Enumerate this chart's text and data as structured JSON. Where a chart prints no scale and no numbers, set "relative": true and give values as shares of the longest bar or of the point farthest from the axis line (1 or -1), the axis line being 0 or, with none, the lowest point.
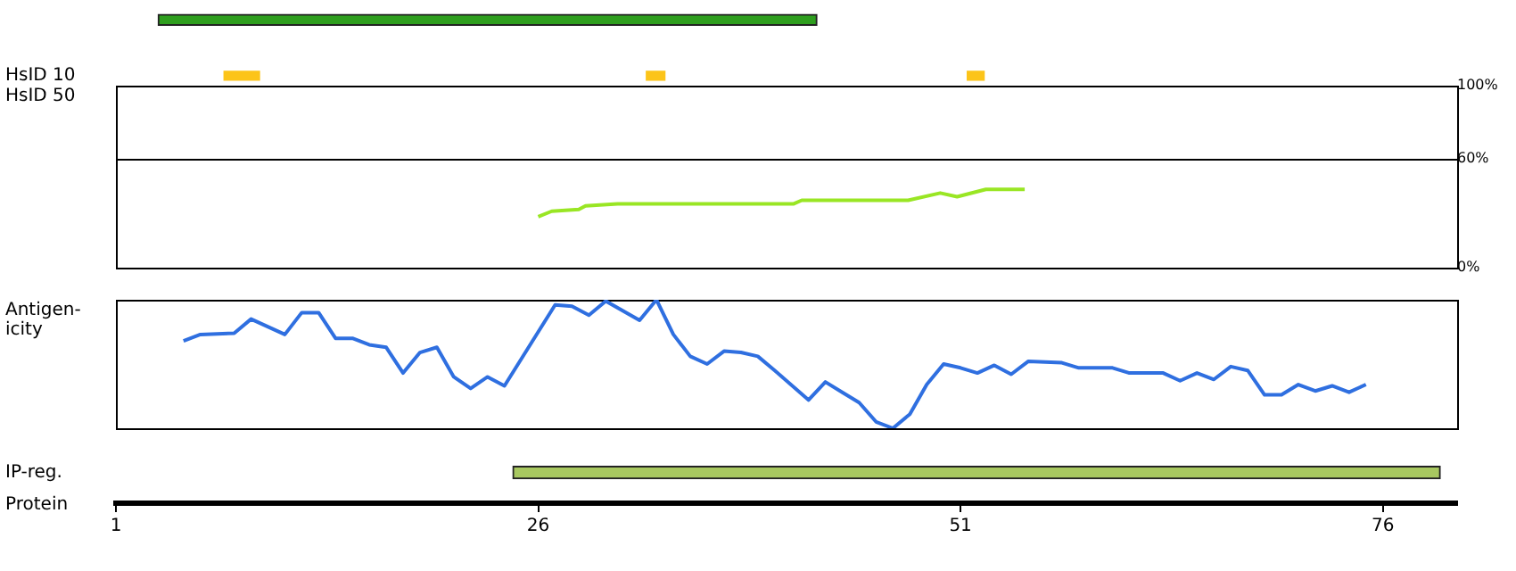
{
  "chart_data": [
    {
      "type": "bar",
      "orientation": "horizontal",
      "categories": [
        null,
        "HsID 10",
        "IP-reg."
      ],
      "series": [
        {
          "color": "#2e9e1e",
          "base": [
            3.5,
            null,
            null
          ],
          "values": [
            39,
            null,
            null
          ]
        },
        {
          "color": "#fcc419",
          "base": [
            null,
            7.4,
            null
          ],
          "values": [
            null,
            2.1,
            null
          ]
        },
        {
          "color": "#fcc419",
          "base": [
            null,
            32.4,
            null
          ],
          "values": [
            null,
            1.1,
            null
          ]
        },
        {
          "color": "#fcc419",
          "base": [
            null,
            51.4,
            null
          ],
          "values": [
            null,
            1,
            null
          ]
        },
        {
          "color": "#a8c860",
          "base": [
            null,
            null,
            24.5
          ],
          "values": [
            null,
            null,
            54.9
          ]
        }
      ],
      "xlabel": "Protein",
      "xlim": [
        1,
        80.4
      ],
      "xticks": [
        1,
        26,
        51,
        76
      ]
    },
    {
      "type": "line",
      "ylabel": "HsID 50",
      "x": [
        26,
        26.8,
        28.4,
        28.8,
        30.7,
        41.1,
        41.6,
        47.9,
        49.8,
        50.8,
        52.5,
        54.8
      ],
      "values": [
        28,
        31,
        32,
        34,
        35,
        35,
        37,
        37,
        41,
        39,
        43,
        43
      ],
      "color": "#99e624",
      "xlim": [
        1,
        80.4
      ],
      "ylim": [
        0,
        100
      ],
      "yticks": [
        {
          "value": 0,
          "label": "0%"
        },
        {
          "value": 60,
          "label": "60%"
        },
        {
          "value": 100,
          "label": "100%"
        }
      ],
      "ref_lines": [
        {
          "axis": "y",
          "value": 60,
          "color": "#000000"
        }
      ],
      "tick_labels": "y"
    },
    {
      "type": "line",
      "relative": true,
      "ylabel": "Antigen-\nicity",
      "x": [
        5,
        6,
        8,
        9,
        11,
        12,
        13,
        14,
        15,
        16,
        17,
        18,
        19,
        20,
        21,
        22,
        23,
        24,
        27,
        28,
        29,
        30,
        32,
        33,
        34,
        35,
        36,
        37,
        38,
        39,
        40,
        42,
        43,
        44,
        45,
        46,
        47,
        48,
        49,
        50,
        51,
        52,
        53,
        54,
        55,
        57,
        58,
        60,
        61,
        63,
        64,
        65,
        66,
        67,
        68,
        69,
        70,
        71,
        72,
        73,
        74,
        75
      ],
      "values": [
        0.68,
        0.73,
        0.74,
        0.85,
        0.73,
        0.9,
        0.9,
        0.7,
        0.7,
        0.65,
        0.63,
        0.43,
        0.59,
        0.63,
        0.4,
        0.31,
        0.4,
        0.33,
        0.96,
        0.95,
        0.88,
        0.99,
        0.84,
        1,
        0.73,
        0.56,
        0.5,
        0.6,
        0.59,
        0.56,
        0.45,
        0.22,
        0.36,
        0.28,
        0.2,
        0.05,
        0,
        0.11,
        0.34,
        0.5,
        0.47,
        0.43,
        0.49,
        0.42,
        0.52,
        0.51,
        0.47,
        0.47,
        0.43,
        0.43,
        0.37,
        0.43,
        0.38,
        0.48,
        0.45,
        0.26,
        0.26,
        0.34,
        0.29,
        0.33,
        0.28,
        0.34
      ],
      "color": "#2f6fe0",
      "xlim": [
        1,
        80.4
      ],
      "tick_labels": false
    }
  ]
}
